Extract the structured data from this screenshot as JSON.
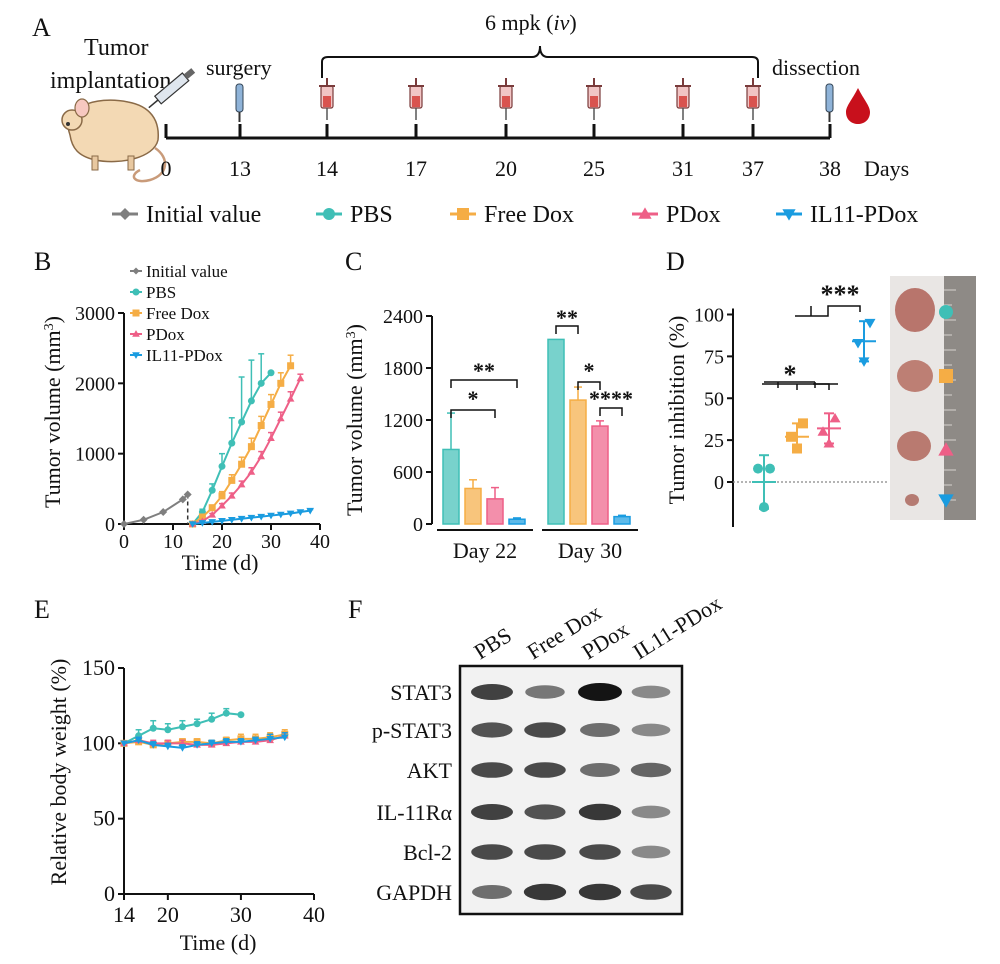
{
  "colors": {
    "initial": "#7f7f7f",
    "pbs": "#3fbfb6",
    "free_dox": "#f5ad45",
    "pdox": "#ee5f87",
    "il11_pdox": "#1a9ce0"
  },
  "panel_labels": [
    "A",
    "B",
    "C",
    "D",
    "E",
    "F"
  ],
  "timeline": {
    "bracket_label": "6 mpk (",
    "bracket_label_italic": "iv",
    "bracket_label_close": ")",
    "left_line1": "Tumor",
    "left_line2": "implantation",
    "surgery_label": "surgery",
    "dissection_label": "dissection",
    "days": [
      "0",
      "13",
      "14",
      "17",
      "20",
      "25",
      "31",
      "37",
      "38"
    ],
    "days_unit": "Days"
  },
  "legend": [
    "Initial value",
    "PBS",
    "Free Dox",
    "PDox",
    "IL11-PDox"
  ],
  "chart_data": [
    {
      "panel": "B",
      "type": "line",
      "xlabel": "Time (d)",
      "ylabel": "Tumor volume (mm",
      "ylabel_sup": "3",
      "ylabel_close": ")",
      "xlim": [
        0,
        40
      ],
      "ylim": [
        0,
        3000
      ],
      "xticks": [
        0,
        10,
        20,
        30,
        40
      ],
      "yticks": [
        0,
        1000,
        2000,
        3000
      ],
      "legend": [
        "Initial value",
        "PBS",
        "Free Dox",
        "PDox",
        "IL11-PDox"
      ],
      "series": [
        {
          "name": "Initial value",
          "x": [
            0,
            4,
            8,
            12,
            13,
            13
          ],
          "y": [
            0,
            60,
            170,
            350,
            420,
            0
          ]
        },
        {
          "name": "PBS",
          "x": [
            14,
            16,
            18,
            20,
            22,
            24,
            26,
            28,
            30
          ],
          "y": [
            0,
            170,
            480,
            820,
            1150,
            1450,
            1750,
            2000,
            2150
          ],
          "err": [
            0,
            40,
            90,
            180,
            360,
            640,
            580,
            420,
            0
          ]
        },
        {
          "name": "Free Dox",
          "x": [
            14,
            16,
            18,
            20,
            22,
            24,
            26,
            28,
            30,
            32,
            34
          ],
          "y": [
            0,
            100,
            230,
            400,
            620,
            850,
            1100,
            1400,
            1700,
            2000,
            2250
          ],
          "err": [
            0,
            20,
            40,
            60,
            80,
            100,
            120,
            130,
            140,
            150,
            150
          ]
        },
        {
          "name": "PDox",
          "x": [
            14,
            16,
            18,
            20,
            22,
            24,
            26,
            28,
            30,
            32,
            34,
            36
          ],
          "y": [
            0,
            40,
            130,
            260,
            400,
            560,
            740,
            960,
            1220,
            1500,
            1780,
            2070
          ],
          "err": [
            0,
            10,
            20,
            30,
            40,
            50,
            60,
            70,
            80,
            90,
            100,
            60
          ]
        },
        {
          "name": "IL11-PDox",
          "x": [
            14,
            16,
            18,
            20,
            22,
            24,
            26,
            28,
            30,
            32,
            34,
            36,
            38
          ],
          "y": [
            0,
            15,
            30,
            45,
            60,
            75,
            90,
            105,
            120,
            135,
            150,
            170,
            190
          ],
          "err": [
            0,
            5,
            5,
            5,
            8,
            8,
            8,
            10,
            10,
            10,
            12,
            12,
            15
          ]
        }
      ]
    },
    {
      "panel": "C",
      "type": "bar",
      "ylabel": "Tumor volume (mm",
      "ylabel_sup": "3",
      "ylabel_close": ")",
      "ylim": [
        0,
        2400
      ],
      "yticks": [
        0,
        600,
        1200,
        1800,
        2400
      ],
      "categories": [
        "Day 22",
        "Day 30"
      ],
      "series": [
        {
          "name": "PBS",
          "values": [
            860,
            2130
          ],
          "err": [
            420,
            0
          ]
        },
        {
          "name": "Free Dox",
          "values": [
            410,
            1430
          ],
          "err": [
            100,
            150
          ]
        },
        {
          "name": "PDox",
          "values": [
            290,
            1130
          ],
          "err": [
            130,
            60
          ]
        },
        {
          "name": "IL11-PDox",
          "values": [
            55,
            85
          ],
          "err": [
            15,
            15
          ]
        }
      ],
      "significance": [
        "**",
        "*",
        "**",
        "*",
        "****"
      ]
    },
    {
      "panel": "D",
      "type": "scatter",
      "ylabel": "Tumor inhibition (%)",
      "ylim": [
        -25,
        115
      ],
      "yticks": [
        0,
        25,
        50,
        75,
        100
      ],
      "groups": [
        {
          "name": "PBS",
          "points": [
            -15,
            8,
            8
          ],
          "mean": 0,
          "sd": 16
        },
        {
          "name": "Free Dox",
          "points": [
            20,
            27,
            35
          ],
          "mean": 27,
          "sd": 8
        },
        {
          "name": "PDox",
          "points": [
            23,
            30,
            38
          ],
          "mean": 32,
          "sd": 9
        },
        {
          "name": "IL11-PDox",
          "points": [
            72,
            83,
            95
          ],
          "mean": 84,
          "sd": 12
        }
      ],
      "significance": [
        "*",
        "***"
      ]
    },
    {
      "panel": "E",
      "type": "line",
      "xlabel": "Time (d)",
      "ylabel": "Relative body weight (%)",
      "xlim": [
        14,
        40
      ],
      "ylim": [
        0,
        150
      ],
      "xticks": [
        14,
        20,
        30,
        40
      ],
      "yticks": [
        0,
        50,
        100,
        150
      ],
      "series": [
        {
          "name": "PBS",
          "x": [
            14,
            16,
            18,
            20,
            22,
            24,
            26,
            28,
            30
          ],
          "y": [
            100,
            105,
            110,
            109,
            111,
            113,
            116,
            120,
            119
          ],
          "err": [
            0,
            4,
            5,
            4,
            4,
            3,
            4,
            3,
            0
          ]
        },
        {
          "name": "Free Dox",
          "x": [
            14,
            16,
            18,
            20,
            22,
            24,
            26,
            28,
            30,
            32,
            34,
            36
          ],
          "y": [
            100,
            101,
            99,
            100,
            101,
            101,
            100,
            102,
            103,
            103,
            104,
            106
          ],
          "err": [
            0,
            2,
            2,
            2,
            2,
            2,
            2,
            2,
            3,
            3,
            3,
            3
          ]
        },
        {
          "name": "PDox",
          "x": [
            14,
            16,
            18,
            20,
            22,
            24,
            26,
            28,
            30,
            32,
            34,
            36
          ],
          "y": [
            100,
            102,
            100,
            100,
            100,
            99,
            99,
            100,
            101,
            101,
            102,
            105
          ],
          "err": [
            0,
            2,
            2,
            2,
            2,
            2,
            2,
            2,
            2,
            2,
            2,
            2
          ]
        },
        {
          "name": "IL11-PDox",
          "x": [
            14,
            16,
            18,
            20,
            22,
            24,
            26,
            28,
            30,
            32,
            34,
            36
          ],
          "y": [
            100,
            102,
            99,
            98,
            97,
            99,
            100,
            101,
            101,
            102,
            103,
            104
          ],
          "err": [
            0,
            2,
            2,
            2,
            2,
            2,
            2,
            2,
            2,
            2,
            3,
            3
          ]
        }
      ]
    }
  ],
  "western_blot": {
    "lanes": [
      "PBS",
      "Free Dox",
      "PDox",
      "IL11-PDox"
    ],
    "proteins": [
      "STAT3",
      "p-STAT3",
      "AKT",
      "IL-11Rα",
      "Bcl-2",
      "GAPDH"
    ],
    "band_intensity": [
      [
        0.75,
        0.45,
        1.0,
        0.35
      ],
      [
        0.65,
        0.7,
        0.5,
        0.35
      ],
      [
        0.7,
        0.7,
        0.5,
        0.55
      ],
      [
        0.75,
        0.65,
        0.8,
        0.35
      ],
      [
        0.7,
        0.7,
        0.7,
        0.35
      ],
      [
        0.5,
        0.8,
        0.8,
        0.7
      ]
    ]
  }
}
